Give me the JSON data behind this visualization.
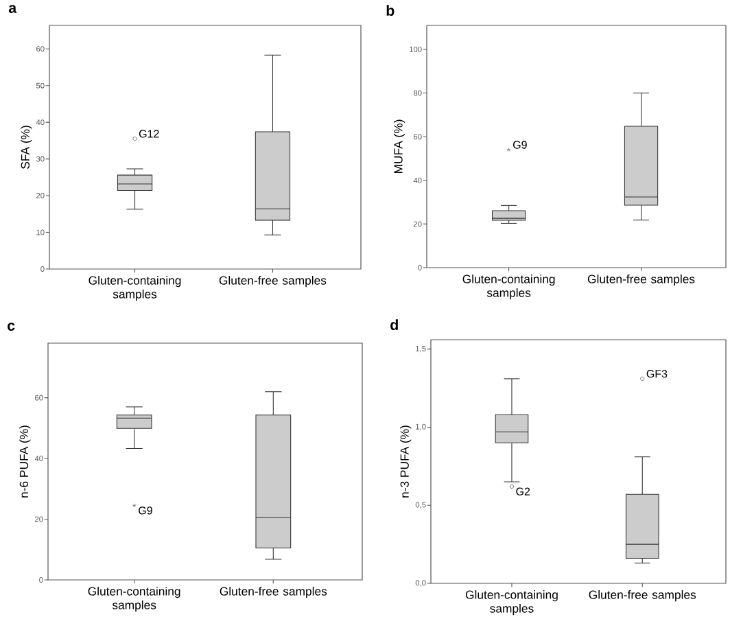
{
  "chart_data": [
    {
      "type": "box",
      "title": "a",
      "ylabel": "SFA (%)",
      "categories": [
        "Gluten-containing samples",
        "Gluten-free samples"
      ],
      "ylim": [
        0,
        66.4
      ],
      "yticks": [
        0,
        10,
        20,
        30,
        40,
        50,
        60
      ],
      "marker": "circle",
      "series": [
        {
          "color": "#cccccc",
          "boxes": [
            {
              "low": 16.3,
              "q1": 21.4,
              "median": 23.2,
              "q3": 25.6,
              "high": 27.3,
              "outliers": [
                35.5
              ]
            },
            {
              "low": 9.3,
              "q1": 13.3,
              "median": 16.4,
              "q3": 37.4,
              "high": 58.3
            }
          ]
        }
      ],
      "annotations": [
        "G12"
      ]
    },
    {
      "type": "box",
      "title": "b",
      "ylabel": "MUFA (%)",
      "categories": [
        "Gluten-containing samples",
        "Gluten-free samples"
      ],
      "ylim": [
        0,
        111
      ],
      "yticks": [
        0,
        20,
        40,
        60,
        80,
        100
      ],
      "marker": "star",
      "series": [
        {
          "color": "#cccccc",
          "boxes": [
            {
              "low": 20.3,
              "q1": 21.7,
              "median": 22.6,
              "q3": 26.1,
              "high": 28.5,
              "outliers": [
                54
              ]
            },
            {
              "low": 21.8,
              "q1": 28.6,
              "median": 32.4,
              "q3": 64.8,
              "high": 80
            }
          ]
        }
      ],
      "annotations": [
        "G9"
      ]
    },
    {
      "type": "box",
      "title": "c",
      "ylabel": "n-6 PUFA (%)",
      "categories": [
        "Gluten-containing samples",
        "Gluten-free samples"
      ],
      "ylim": [
        0,
        78
      ],
      "yticks": [
        0,
        20,
        40,
        60
      ],
      "marker": "star",
      "series": [
        {
          "color": "#cccccc",
          "boxes": [
            {
              "low": 43.3,
              "q1": 49.9,
              "median": 53.3,
              "q3": 54.3,
              "high": 57.0,
              "outliers": [
                24.5
              ]
            },
            {
              "low": 6.8,
              "q1": 10.5,
              "median": 20.5,
              "q3": 54.3,
              "high": 62.0
            }
          ]
        }
      ],
      "annotations": [
        "G9"
      ]
    },
    {
      "type": "box",
      "title": "d",
      "ylabel": "n-3 PUFA (%)",
      "categories": [
        "Gluten-containing samples",
        "Gluten-free samples"
      ],
      "ylim": [
        0,
        1.56
      ],
      "yticks": [
        {
          "value": 0,
          "label": "0,0"
        },
        {
          "value": 0.5,
          "label": "0,5"
        },
        {
          "value": 1,
          "label": "1,0"
        },
        {
          "value": 1.5,
          "label": "1,5"
        }
      ],
      "marker": "circle",
      "series": [
        {
          "color": "#cccccc",
          "boxes": [
            {
              "low": 0.65,
              "q1": 0.9,
              "median": 0.97,
              "q3": 1.08,
              "high": 1.31,
              "outliers": [
                0.62
              ]
            },
            {
              "low": 0.13,
              "q1": 0.16,
              "median": 0.25,
              "q3": 0.57,
              "high": 0.81,
              "outliers": [
                1.31
              ]
            }
          ]
        }
      ],
      "annotations": [
        "G2",
        "GF3"
      ]
    }
  ]
}
